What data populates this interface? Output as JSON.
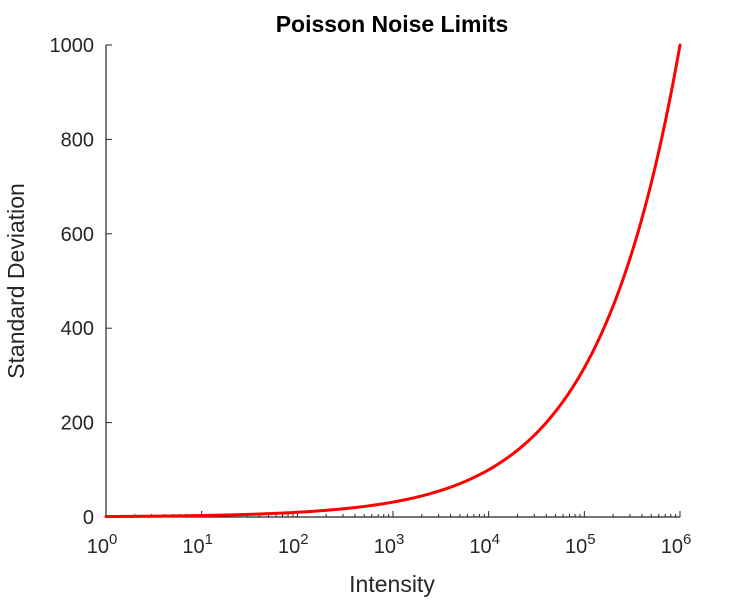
{
  "chart_data": {
    "type": "line",
    "title": "Poisson Noise Limits",
    "xlabel": "Intensity",
    "ylabel": "Standard Deviation",
    "x_scale": "log",
    "xlim": [
      1,
      1000000
    ],
    "ylim": [
      0,
      1000
    ],
    "x_ticks": [
      {
        "base": "10",
        "exp": "0",
        "value": 1
      },
      {
        "base": "10",
        "exp": "1",
        "value": 10
      },
      {
        "base": "10",
        "exp": "2",
        "value": 100
      },
      {
        "base": "10",
        "exp": "3",
        "value": 1000
      },
      {
        "base": "10",
        "exp": "4",
        "value": 10000
      },
      {
        "base": "10",
        "exp": "5",
        "value": 100000
      },
      {
        "base": "10",
        "exp": "6",
        "value": 1000000
      }
    ],
    "y_ticks": [
      {
        "label": "0",
        "value": 0
      },
      {
        "label": "200",
        "value": 200
      },
      {
        "label": "400",
        "value": 400
      },
      {
        "label": "600",
        "value": 600
      },
      {
        "label": "800",
        "value": 800
      },
      {
        "label": "1000",
        "value": 1000
      }
    ],
    "grid": false,
    "series": [
      {
        "color": "#ff0000",
        "x": [
          1,
          10,
          100,
          1000,
          10000,
          30000,
          100000,
          300000,
          1000000
        ],
        "y": [
          1,
          3.16,
          10,
          31.6,
          100,
          173.2,
          316.2,
          547.7,
          1000
        ]
      }
    ]
  }
}
